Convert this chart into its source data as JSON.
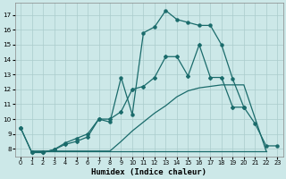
{
  "xlabel": "Humidex (Indice chaleur)",
  "background_color": "#cce8e8",
  "grid_color": "#aacccc",
  "line_color": "#1a6b6b",
  "xlim": [
    -0.5,
    23.5
  ],
  "ylim": [
    7.5,
    17.8
  ],
  "xticks": [
    0,
    1,
    2,
    3,
    4,
    5,
    6,
    7,
    8,
    9,
    10,
    11,
    12,
    13,
    14,
    15,
    16,
    17,
    18,
    19,
    20,
    21,
    22,
    23
  ],
  "yticks": [
    8,
    9,
    10,
    11,
    12,
    13,
    14,
    15,
    16,
    17
  ],
  "line_flat": {
    "x": [
      1,
      22
    ],
    "y": [
      7.85,
      7.85
    ]
  },
  "line_ramp": {
    "x": [
      1,
      2,
      3,
      4,
      5,
      6,
      7,
      8,
      9,
      10,
      11,
      12,
      13,
      14,
      15,
      16,
      17,
      18,
      19,
      20,
      22
    ],
    "y": [
      7.85,
      7.85,
      7.85,
      7.85,
      7.85,
      7.85,
      7.85,
      7.85,
      8.5,
      9.2,
      9.8,
      10.4,
      10.9,
      11.5,
      11.9,
      12.1,
      12.2,
      12.3,
      12.3,
      12.3,
      7.85
    ]
  },
  "line_main": {
    "x": [
      0,
      1,
      2,
      3,
      4,
      5,
      6,
      7,
      8,
      9,
      10,
      11,
      12,
      13,
      14,
      15,
      16,
      17,
      18,
      19,
      20,
      21,
      22,
      23
    ],
    "y": [
      9.4,
      7.75,
      7.75,
      7.95,
      8.4,
      8.7,
      9.0,
      10.0,
      9.8,
      12.8,
      10.3,
      15.8,
      16.2,
      17.3,
      16.7,
      16.5,
      16.3,
      16.3,
      15.0,
      12.7,
      10.8,
      9.7,
      8.2,
      8.2
    ]
  },
  "line_second": {
    "x": [
      0,
      1,
      2,
      3,
      4,
      5,
      6,
      7,
      8,
      9,
      10,
      11,
      12,
      13,
      14,
      15,
      16,
      17,
      18,
      19,
      20
    ],
    "y": [
      9.4,
      7.75,
      7.75,
      7.95,
      8.3,
      8.5,
      8.8,
      10.0,
      10.0,
      10.5,
      12.0,
      12.2,
      12.8,
      14.2,
      14.2,
      12.9,
      15.0,
      12.8,
      12.8,
      10.8,
      10.8
    ]
  }
}
